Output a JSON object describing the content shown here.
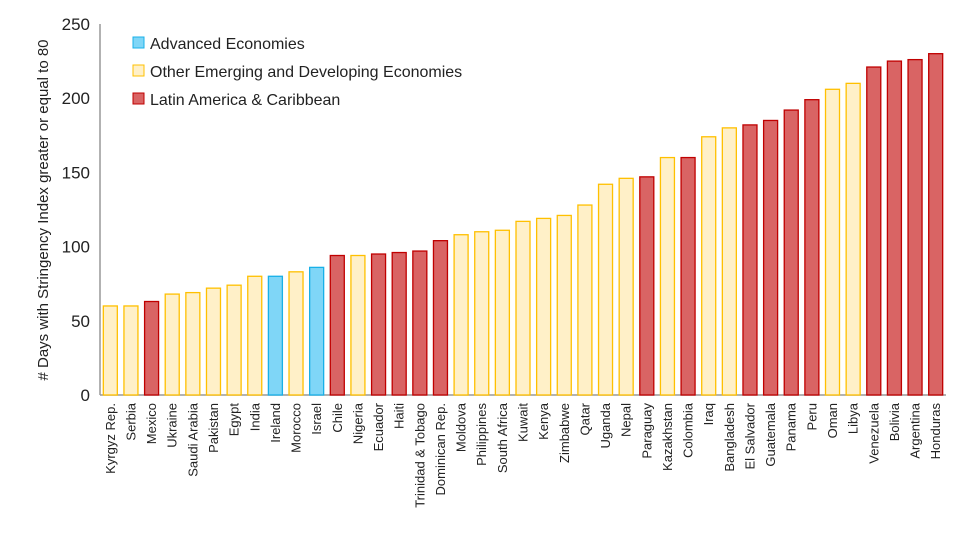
{
  "chart_data": {
    "type": "bar",
    "title": "",
    "xlabel": "",
    "ylabel": "# Days with Stringency Index greater or equal to 80",
    "ylim": [
      0,
      250
    ],
    "yticks": [
      0,
      50,
      100,
      150,
      200,
      250
    ],
    "grid": false,
    "legend_position": "top-left",
    "legend": [
      {
        "key": "A",
        "label": "Advanced Economies",
        "fill": "#7fd6f7",
        "stroke": "#18b0e8"
      },
      {
        "key": "O",
        "label": "Other Emerging and Developing Economies",
        "fill": "#fff0c8",
        "stroke": "#ffc000"
      },
      {
        "key": "L",
        "label": "Latin America & Caribbean",
        "fill": "#d96464",
        "stroke": "#c00000"
      }
    ],
    "categories": [
      "Kyrgyz Rep.",
      "Serbia",
      "Mexico",
      "Ukraine",
      "Saudi Arabia",
      "Pakistan",
      "Egypt",
      "India",
      "Ireland",
      "Morocco",
      "Israel",
      "Chile",
      "Nigeria",
      "Ecuador",
      "Haiti",
      "Trinidad & Tobago",
      "Dominican Rep.",
      "Moldova",
      "Philippines",
      "South Africa",
      "Kuwait",
      "Kenya",
      "Zimbabwe",
      "Qatar",
      "Uganda",
      "Nepal",
      "Paraguay",
      "Kazakhstan",
      "Colombia",
      "Iraq",
      "Bangladesh",
      "El Salvador",
      "Guatemala",
      "Panama",
      "Peru",
      "Oman",
      "Libya",
      "Venezuela",
      "Bolivia",
      "Argentina",
      "Honduras"
    ],
    "groups": [
      "O",
      "O",
      "L",
      "O",
      "O",
      "O",
      "O",
      "O",
      "A",
      "O",
      "A",
      "L",
      "O",
      "L",
      "L",
      "L",
      "L",
      "O",
      "O",
      "O",
      "O",
      "O",
      "O",
      "O",
      "O",
      "O",
      "L",
      "O",
      "L",
      "O",
      "O",
      "L",
      "L",
      "L",
      "L",
      "O",
      "O",
      "L",
      "L",
      "L",
      "L"
    ],
    "values": [
      60,
      60,
      63,
      68,
      69,
      72,
      74,
      80,
      80,
      83,
      86,
      94,
      94,
      95,
      96,
      97,
      104,
      108,
      110,
      111,
      117,
      119,
      121,
      128,
      142,
      146,
      147,
      160,
      160,
      174,
      180,
      182,
      185,
      192,
      199,
      206,
      210,
      221,
      225,
      226,
      230
    ]
  }
}
